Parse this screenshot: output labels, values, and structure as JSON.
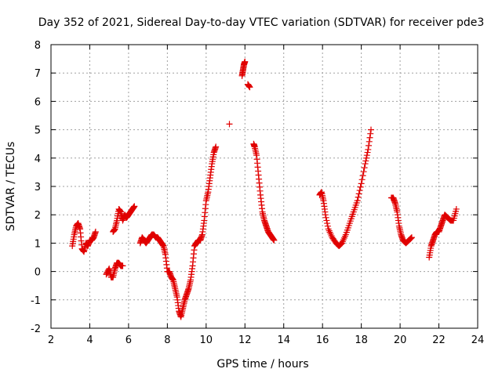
{
  "chart_data": {
    "type": "scatter",
    "title": "Day 352 of 2021, Sidereal Day-to-day VTEC variation (SDTVAR) for receiver pde3",
    "xlabel": "GPS time / hours",
    "ylabel": "SDTVAR / TECUs",
    "xlim": [
      2,
      24
    ],
    "ylim": [
      -2,
      8
    ],
    "xticks": [
      2,
      4,
      6,
      8,
      10,
      12,
      14,
      16,
      18,
      20,
      22,
      24
    ],
    "yticks": [
      -2,
      -1,
      0,
      1,
      2,
      3,
      4,
      5,
      6,
      7,
      8
    ],
    "xtick_labels": [
      "2",
      "4",
      "6",
      "8",
      "10",
      "12",
      "14",
      "16",
      "18",
      "20",
      "22",
      "24"
    ],
    "ytick_labels": [
      "-2",
      "-1",
      "0",
      "1",
      "2",
      "3",
      "4",
      "5",
      "6",
      "7",
      "8"
    ],
    "grid": true,
    "marker": "plus",
    "marker_color": "#e00000",
    "series": [
      {
        "name": "SDTVAR",
        "segments": [
          {
            "x": [
              3.1,
              3.2,
              3.3,
              3.4,
              3.5,
              3.6,
              3.7,
              3.8,
              3.9,
              4.0,
              4.1,
              4.2,
              4.3
            ],
            "y": [
              0.9,
              1.3,
              1.6,
              1.7,
              1.5,
              0.8,
              0.7,
              1.0,
              0.9,
              1.1,
              1.1,
              1.2,
              1.4
            ]
          },
          {
            "x": [
              4.85,
              5.0,
              5.1,
              5.2,
              5.3,
              5.4,
              5.5,
              5.6,
              5.7
            ],
            "y": [
              -0.1,
              0.1,
              -0.2,
              -0.2,
              0.1,
              0.3,
              0.3,
              0.2,
              0.2
            ]
          },
          {
            "x": [
              5.2,
              5.3,
              5.4,
              5.5,
              5.6,
              5.7,
              5.8,
              5.9,
              6.0,
              6.1,
              6.2,
              6.3
            ],
            "y": [
              1.4,
              1.5,
              1.8,
              2.2,
              2.1,
              1.8,
              2.0,
              1.9,
              2.0,
              2.1,
              2.2,
              2.3
            ]
          },
          {
            "x": [
              6.6,
              6.7,
              6.8,
              6.9,
              7.0,
              7.1,
              7.2,
              7.3,
              7.4,
              7.5,
              7.6,
              7.7,
              7.8,
              7.9,
              8.0,
              8.1,
              8.2,
              8.3,
              8.4,
              8.5,
              8.6,
              8.7,
              8.8,
              8.9,
              9.0,
              9.1,
              9.2,
              9.3,
              9.4,
              9.5,
              9.6,
              9.7,
              9.8,
              9.9,
              10.0,
              10.1,
              10.2,
              10.3,
              10.4,
              10.5
            ],
            "y": [
              1.0,
              1.2,
              1.1,
              1.0,
              1.1,
              1.2,
              1.3,
              1.3,
              1.2,
              1.2,
              1.1,
              1.0,
              0.9,
              0.6,
              0.0,
              0.0,
              -0.2,
              -0.3,
              -0.6,
              -0.9,
              -1.4,
              -1.6,
              -1.3,
              -1.0,
              -0.8,
              -0.6,
              -0.3,
              0.2,
              0.9,
              1.0,
              1.1,
              1.1,
              1.3,
              1.8,
              2.5,
              2.8,
              3.3,
              3.8,
              4.2,
              4.4
            ]
          },
          {
            "x": [
              11.2
            ],
            "y": [
              5.2
            ]
          },
          {
            "x": [
              11.85,
              11.9,
              11.95,
              12.0
            ],
            "y": [
              6.9,
              7.1,
              7.3,
              7.4
            ]
          },
          {
            "x": [
              12.15,
              12.25
            ],
            "y": [
              6.6,
              6.5
            ]
          },
          {
            "x": [
              12.45,
              12.5,
              12.6,
              12.7,
              12.8,
              12.9,
              13.0,
              13.1,
              13.2,
              13.3,
              13.4,
              13.5
            ],
            "y": [
              4.5,
              4.4,
              4.1,
              3.4,
              2.7,
              2.1,
              1.8,
              1.6,
              1.4,
              1.3,
              1.2,
              1.1
            ]
          },
          {
            "x": [
              15.85,
              15.95,
              16.05,
              16.15,
              16.3,
              16.5,
              16.7,
              16.85,
              17.0,
              17.2,
              17.4,
              17.6,
              17.8,
              18.0,
              18.2,
              18.35,
              18.5
            ],
            "y": [
              2.7,
              2.8,
              2.5,
              2.0,
              1.5,
              1.2,
              1.0,
              0.9,
              1.0,
              1.3,
              1.7,
              2.1,
              2.5,
              3.1,
              3.8,
              4.3,
              5.0
            ]
          },
          {
            "x": [
              19.55,
              19.65,
              19.75,
              19.85,
              19.95,
              20.05,
              20.15,
              20.3,
              20.45,
              20.6
            ],
            "y": [
              2.6,
              2.6,
              2.4,
              2.1,
              1.6,
              1.3,
              1.1,
              1.0,
              1.1,
              1.2
            ]
          },
          {
            "x": [
              21.5,
              21.6,
              21.7,
              21.8,
              21.9,
              22.0,
              22.1,
              22.2,
              22.3,
              22.45,
              22.6,
              22.75,
              22.9
            ],
            "y": [
              0.5,
              0.9,
              1.1,
              1.3,
              1.4,
              1.4,
              1.6,
              1.8,
              2.0,
              1.9,
              1.8,
              1.8,
              2.2
            ]
          }
        ]
      }
    ]
  }
}
